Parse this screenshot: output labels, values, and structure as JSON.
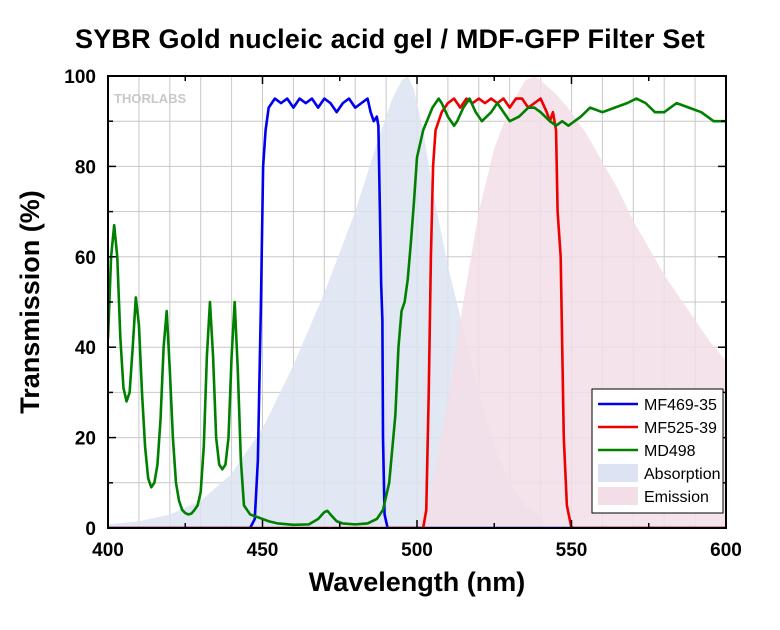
{
  "chart_data": {
    "type": "line",
    "title": "SYBR Gold nucleic acid gel / MDF-GFP Filter Set",
    "xlabel": "Wavelength (nm)",
    "ylabel": "Transmission (%)",
    "xlim": [
      400,
      600
    ],
    "ylim": [
      0,
      100
    ],
    "xticks": [
      400,
      450,
      500,
      550,
      600
    ],
    "yticks": [
      0,
      20,
      40,
      60,
      80,
      100
    ],
    "grid": true,
    "legend_position": "bottom-right",
    "watermark": "THORLABS",
    "series": [
      {
        "name": "MF469-35",
        "kind": "line",
        "color": "#0000ee",
        "points": [
          [
            400,
            0
          ],
          [
            446,
            0
          ],
          [
            447.5,
            2
          ],
          [
            448.5,
            15
          ],
          [
            449.5,
            50
          ],
          [
            450.2,
            80
          ],
          [
            451,
            88
          ],
          [
            452,
            93
          ],
          [
            454,
            95
          ],
          [
            456,
            94
          ],
          [
            458,
            95
          ],
          [
            460,
            93
          ],
          [
            462,
            95
          ],
          [
            464,
            94
          ],
          [
            466,
            95
          ],
          [
            468,
            93
          ],
          [
            470,
            95
          ],
          [
            472,
            94
          ],
          [
            474,
            92
          ],
          [
            476,
            94
          ],
          [
            478,
            95
          ],
          [
            480,
            93
          ],
          [
            482,
            94
          ],
          [
            484,
            95
          ],
          [
            485,
            92
          ],
          [
            486,
            90
          ],
          [
            487,
            91
          ],
          [
            487.5,
            89
          ],
          [
            488,
            70
          ],
          [
            488.4,
            54
          ],
          [
            488.8,
            46
          ],
          [
            489,
            20
          ],
          [
            489.5,
            3
          ],
          [
            490.5,
            0
          ],
          [
            600,
            0
          ]
        ]
      },
      {
        "name": "MF525-39",
        "kind": "line",
        "color": "#ee0000",
        "points": [
          [
            400,
            0
          ],
          [
            502,
            0
          ],
          [
            503,
            4
          ],
          [
            503.8,
            30
          ],
          [
            504.5,
            60
          ],
          [
            505.2,
            80
          ],
          [
            506,
            88
          ],
          [
            508,
            92
          ],
          [
            510,
            94
          ],
          [
            512,
            95
          ],
          [
            514,
            93
          ],
          [
            516,
            95
          ],
          [
            518,
            94
          ],
          [
            520,
            95
          ],
          [
            522,
            94
          ],
          [
            524,
            95
          ],
          [
            526,
            94
          ],
          [
            528,
            95
          ],
          [
            530,
            93
          ],
          [
            532,
            95
          ],
          [
            534,
            95
          ],
          [
            536,
            93
          ],
          [
            538,
            94
          ],
          [
            540,
            95
          ],
          [
            542,
            92
          ],
          [
            543,
            90
          ],
          [
            544,
            92
          ],
          [
            545,
            88
          ],
          [
            545.5,
            70
          ],
          [
            546,
            65
          ],
          [
            546.5,
            60
          ],
          [
            547,
            40
          ],
          [
            547.5,
            20
          ],
          [
            548.5,
            5
          ],
          [
            550,
            0
          ],
          [
            600,
            0
          ]
        ]
      },
      {
        "name": "MD498",
        "kind": "line",
        "color": "#008000",
        "points": [
          [
            400,
            42
          ],
          [
            401,
            60
          ],
          [
            402,
            67
          ],
          [
            403,
            60
          ],
          [
            404,
            42
          ],
          [
            405,
            31
          ],
          [
            406,
            28
          ],
          [
            407,
            30
          ],
          [
            408,
            40
          ],
          [
            409,
            51
          ],
          [
            410,
            45
          ],
          [
            411,
            30
          ],
          [
            412,
            18
          ],
          [
            413,
            11
          ],
          [
            414,
            9
          ],
          [
            415,
            10
          ],
          [
            416,
            14
          ],
          [
            417,
            24
          ],
          [
            418,
            40
          ],
          [
            419,
            48
          ],
          [
            420,
            35
          ],
          [
            421,
            20
          ],
          [
            422,
            10
          ],
          [
            423,
            6
          ],
          [
            424,
            4
          ],
          [
            425,
            3.3
          ],
          [
            426,
            3
          ],
          [
            427,
            3.2
          ],
          [
            428,
            4
          ],
          [
            429,
            5
          ],
          [
            430,
            8
          ],
          [
            431,
            18
          ],
          [
            432,
            38
          ],
          [
            433,
            50
          ],
          [
            434,
            38
          ],
          [
            435,
            20
          ],
          [
            436,
            14
          ],
          [
            437,
            13
          ],
          [
            438,
            14
          ],
          [
            439,
            20
          ],
          [
            440,
            38
          ],
          [
            441,
            50
          ],
          [
            442,
            35
          ],
          [
            443,
            15
          ],
          [
            444,
            5
          ],
          [
            446,
            3
          ],
          [
            448,
            2.5
          ],
          [
            450,
            2
          ],
          [
            452,
            1.5
          ],
          [
            455,
            1
          ],
          [
            460,
            0.7
          ],
          [
            465,
            0.8
          ],
          [
            468,
            2
          ],
          [
            470,
            3.5
          ],
          [
            471,
            3.8
          ],
          [
            472,
            3
          ],
          [
            474,
            1.5
          ],
          [
            476,
            1
          ],
          [
            480,
            0.8
          ],
          [
            484,
            1
          ],
          [
            487,
            2
          ],
          [
            489,
            4
          ],
          [
            491,
            10
          ],
          [
            493,
            25
          ],
          [
            494,
            40
          ],
          [
            495,
            48
          ],
          [
            496,
            50
          ],
          [
            497,
            55
          ],
          [
            498,
            63
          ],
          [
            499,
            72
          ],
          [
            500,
            82
          ],
          [
            502,
            88
          ],
          [
            505,
            93
          ],
          [
            507,
            95
          ],
          [
            508,
            94
          ],
          [
            510,
            91
          ],
          [
            512,
            89
          ],
          [
            513,
            90
          ],
          [
            515,
            93
          ],
          [
            517,
            95
          ],
          [
            519,
            92
          ],
          [
            521,
            90
          ],
          [
            524,
            92
          ],
          [
            526,
            94
          ],
          [
            528,
            92
          ],
          [
            530,
            90
          ],
          [
            533,
            91
          ],
          [
            536,
            93
          ],
          [
            538,
            93
          ],
          [
            540,
            92
          ],
          [
            543,
            90
          ],
          [
            545,
            89
          ],
          [
            547,
            90
          ],
          [
            549,
            89
          ],
          [
            551,
            90
          ],
          [
            553,
            91
          ],
          [
            556,
            93
          ],
          [
            560,
            92
          ],
          [
            564,
            93
          ],
          [
            568,
            94
          ],
          [
            571,
            95
          ],
          [
            574,
            94
          ],
          [
            577,
            92
          ],
          [
            580,
            92
          ],
          [
            584,
            94
          ],
          [
            588,
            93
          ],
          [
            592,
            92
          ],
          [
            596,
            90
          ],
          [
            600,
            90
          ]
        ]
      },
      {
        "name": "Absorption",
        "kind": "area",
        "color": "#dde3f2",
        "points": [
          [
            400,
            0.8
          ],
          [
            410,
            1.5
          ],
          [
            420,
            3
          ],
          [
            430,
            6
          ],
          [
            440,
            12
          ],
          [
            450,
            22
          ],
          [
            460,
            36
          ],
          [
            470,
            52
          ],
          [
            480,
            70
          ],
          [
            487,
            85
          ],
          [
            492,
            95
          ],
          [
            495,
            99
          ],
          [
            497,
            100
          ],
          [
            499,
            97
          ],
          [
            502,
            88
          ],
          [
            505,
            75
          ],
          [
            510,
            58
          ],
          [
            515,
            44
          ],
          [
            520,
            30
          ],
          [
            525,
            18
          ],
          [
            530,
            10
          ],
          [
            535,
            5
          ],
          [
            540,
            2.5
          ],
          [
            541,
            0
          ]
        ]
      },
      {
        "name": "Emission",
        "kind": "area",
        "color": "#f3dee7",
        "points": [
          [
            500,
            0
          ],
          [
            505,
            10
          ],
          [
            510,
            28
          ],
          [
            515,
            50
          ],
          [
            520,
            70
          ],
          [
            525,
            84
          ],
          [
            530,
            93
          ],
          [
            535,
            99
          ],
          [
            538,
            100
          ],
          [
            540,
            99
          ],
          [
            545,
            96
          ],
          [
            550,
            92
          ],
          [
            555,
            87
          ],
          [
            560,
            81
          ],
          [
            565,
            75
          ],
          [
            570,
            68
          ],
          [
            575,
            62
          ],
          [
            580,
            56
          ],
          [
            585,
            51
          ],
          [
            590,
            46
          ],
          [
            595,
            41
          ],
          [
            600,
            37
          ],
          [
            600,
            0
          ]
        ]
      }
    ]
  }
}
